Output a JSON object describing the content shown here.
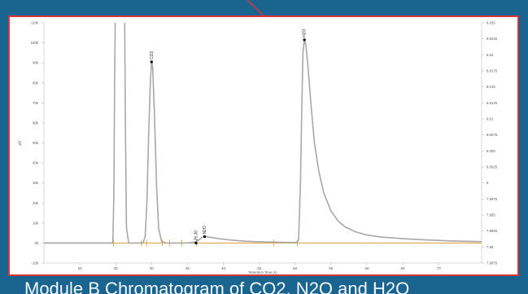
{
  "slide": {
    "caption": "Module B Chromatogram of CO2, N2O and H2O"
  },
  "colors": {
    "background": "#1a6590",
    "frame": "#d9343a",
    "trace": "#a8a8a8",
    "baseline": "#d9a030",
    "marker": "#111111"
  },
  "chart_data": {
    "type": "line",
    "xlabel": "Retention Time (s)",
    "ylabel": "µV",
    "xlim": [
      15,
      76
    ],
    "ylim": [
      -10000,
      110000
    ],
    "y2lim": [
      7.9875,
      8.025
    ],
    "x_ticks": [
      20,
      25,
      30,
      35,
      40,
      45,
      50,
      55,
      60,
      65,
      70
    ],
    "y_ticks": [
      -10000,
      0,
      10000,
      20000,
      30000,
      40000,
      50000,
      60000,
      70000,
      80000,
      90000,
      100000,
      110000
    ],
    "y_tick_labels": [
      "-10k",
      "0k",
      "10k",
      "20k",
      "30k",
      "40k",
      "50k",
      "60k",
      "70k",
      "80k",
      "90k",
      "100k",
      "110k"
    ],
    "y2_ticks": [
      7.9875,
      7.99,
      7.9925,
      7.995,
      7.9975,
      8.0,
      8.0025,
      8.005,
      8.0075,
      8.01,
      8.0125,
      8.015,
      8.0175,
      8.02,
      8.0225,
      8.025
    ],
    "y2_tick_labels": [
      "7.9875",
      "7.99",
      "7.9925",
      "7.995",
      "7.9975",
      "8",
      "8.0025",
      "8.005",
      "8.0075",
      "8.01",
      "8.0125",
      "8.015",
      "8.0175",
      "8.02",
      "8.0225",
      "8.025"
    ],
    "grid": false,
    "series": [
      {
        "values": [
          [
            15,
            0
          ],
          [
            24.6,
            0
          ],
          [
            24.75,
            25000
          ],
          [
            24.85,
            80000
          ],
          [
            24.95,
            115000
          ],
          [
            26.25,
            115000
          ],
          [
            26.35,
            60000
          ],
          [
            26.5,
            8000
          ],
          [
            26.8,
            0
          ],
          [
            28.8,
            0
          ],
          [
            29.1,
            3000
          ],
          [
            29.35,
            20000
          ],
          [
            29.6,
            55000
          ],
          [
            29.85,
            82000
          ],
          [
            30.0,
            90500
          ],
          [
            30.15,
            88000
          ],
          [
            30.4,
            65000
          ],
          [
            30.7,
            28000
          ],
          [
            31.0,
            7000
          ],
          [
            31.4,
            800
          ],
          [
            32.0,
            0
          ],
          [
            34.0,
            0
          ],
          [
            35.0,
            60
          ],
          [
            36.0,
            400
          ],
          [
            36.6,
            1500
          ],
          [
            37.0,
            2800
          ],
          [
            37.4,
            3200
          ],
          [
            37.8,
            3100
          ],
          [
            38.5,
            2700
          ],
          [
            39.5,
            2100
          ],
          [
            41.0,
            1500
          ],
          [
            43.0,
            900
          ],
          [
            46.0,
            500
          ],
          [
            49.0,
            300
          ],
          [
            50.3,
            300
          ],
          [
            50.5,
            2000
          ],
          [
            50.75,
            30000
          ],
          [
            50.95,
            70000
          ],
          [
            51.1,
            95000
          ],
          [
            51.3,
            101500
          ],
          [
            51.5,
            99000
          ],
          [
            51.8,
            88000
          ],
          [
            52.2,
            70000
          ],
          [
            52.7,
            50000
          ],
          [
            53.3,
            36000
          ],
          [
            54.0,
            25000
          ],
          [
            55.0,
            16000
          ],
          [
            56.0,
            11000
          ],
          [
            57.0,
            8000
          ],
          [
            58.5,
            5500
          ],
          [
            60.0,
            4000
          ],
          [
            62.0,
            3000
          ],
          [
            65.0,
            2200
          ],
          [
            68.0,
            1600
          ],
          [
            72.0,
            1000
          ],
          [
            76.0,
            700
          ]
        ]
      }
    ],
    "baseline_marks": [
      24.7,
      28.6,
      29.3,
      31.5,
      32.5,
      34.2,
      36.3,
      47.0,
      50.3
    ],
    "peaks": [
      {
        "label": "CO2",
        "x": 30.0,
        "y": 90500
      },
      {
        "label": "26.30",
        "x": 36.2,
        "y": 0
      },
      {
        "label": "N2O",
        "x": 37.4,
        "y": 3200
      },
      {
        "label": "H2O",
        "x": 51.3,
        "y": 101500
      }
    ]
  }
}
